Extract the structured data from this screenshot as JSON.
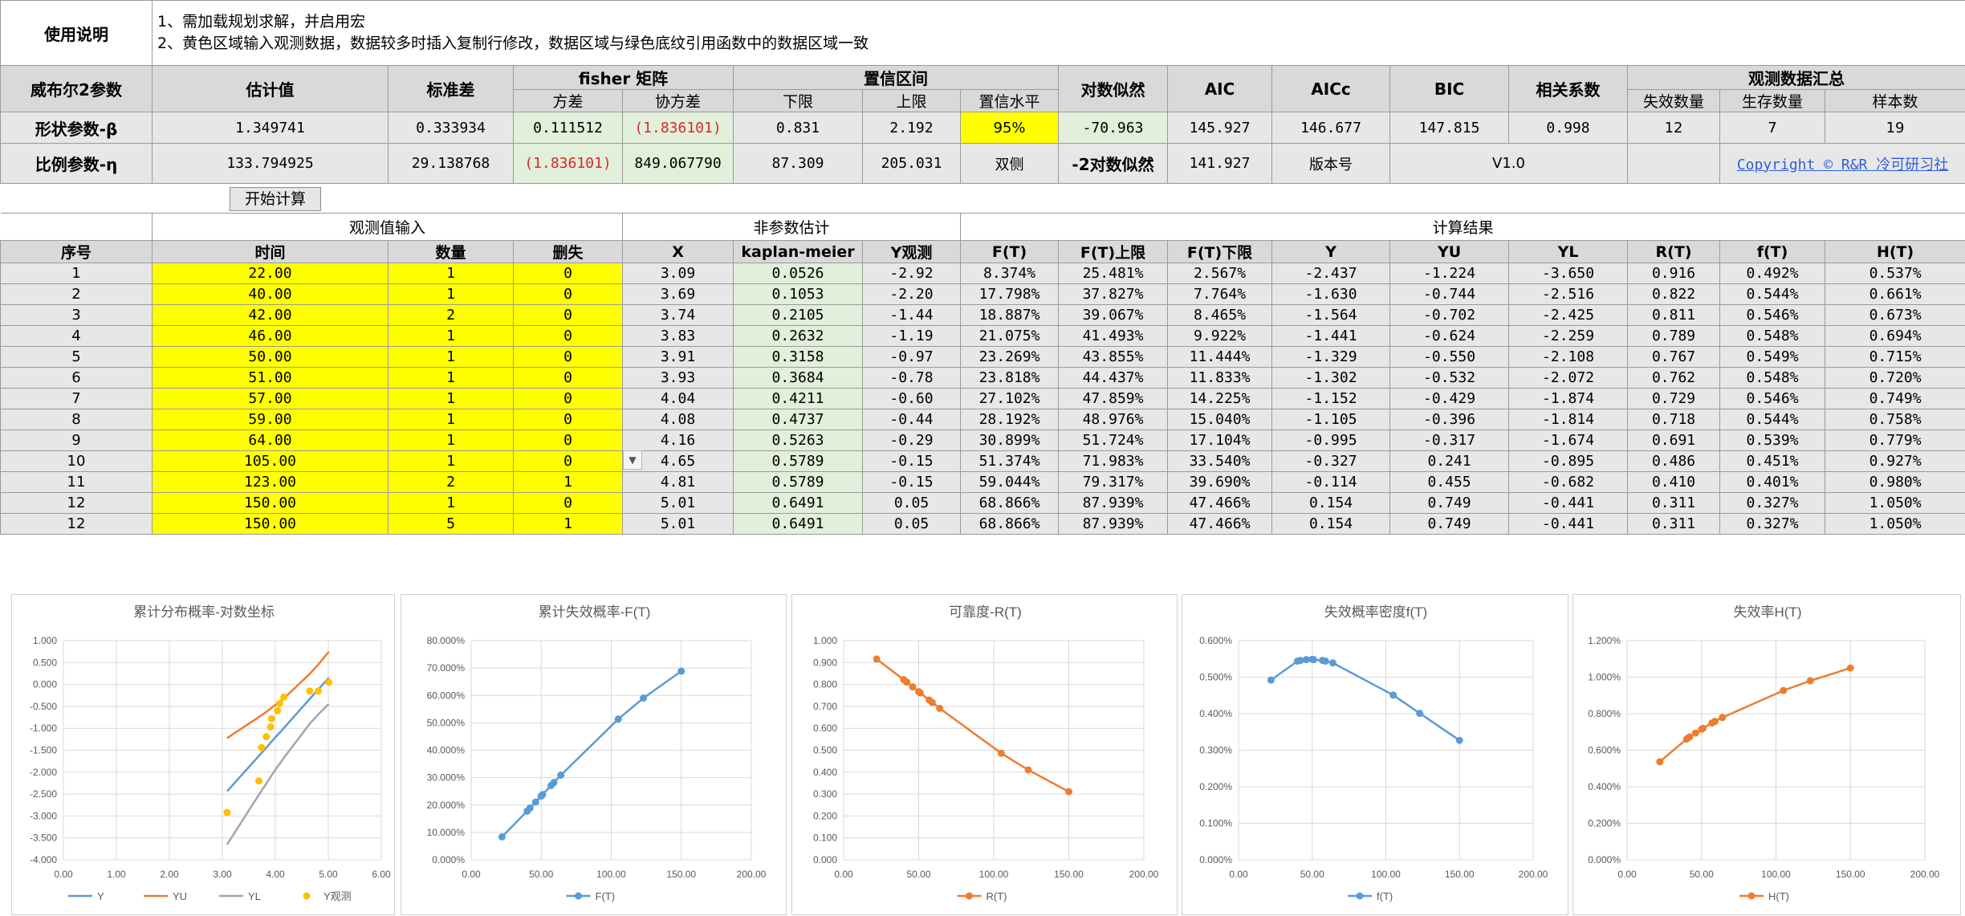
{
  "instructions": {
    "label": "使用说明",
    "line1": "1、需加载规划求解，并启用宏",
    "line2": "2、黄色区域输入观测数据，数据较多时插入复制行修改，数据区域与绿色底纹引用函数中的数据区域一致"
  },
  "params_table": {
    "h_param": "威布尔2参数",
    "h_estimate": "估计值",
    "h_stderr": "标准差",
    "h_fisher": "fisher 矩阵",
    "h_variance": "方差",
    "h_covariance": "协方差",
    "h_ci": "置信区间",
    "h_lower": "下限",
    "h_upper": "上限",
    "h_level": "置信水平",
    "h_loglik": "对数似然",
    "h_aic": "AIC",
    "h_aicc": "AICc",
    "h_bic": "BIC",
    "h_corr": "相关系数",
    "h_summary": "观测数据汇总",
    "h_fail": "失效数量",
    "h_survive": "生存数量",
    "h_samples": "样本数",
    "beta": {
      "label": "形状参数-β",
      "estimate": "1.349741",
      "stderr": "0.333934",
      "variance": "0.111512",
      "covariance": "(1.836101)",
      "lower": "0.831",
      "upper": "2.192",
      "level": "95%",
      "loglik": "-70.963",
      "aic": "145.927",
      "aicc": "146.677",
      "bic": "147.815",
      "corr": "0.998",
      "fail": "12",
      "survive": "7",
      "samples": "19"
    },
    "eta": {
      "label": "比例参数-η",
      "estimate": "133.794925",
      "stderr": "29.138768",
      "variance": "(1.836101)",
      "covariance": "849.067790",
      "lower": "87.309",
      "upper": "205.031",
      "level": "双侧",
      "neg2ll_label": "-2对数似然",
      "neg2ll": "141.927",
      "version_label": "版本号",
      "version": "V1.0",
      "copyright": "Copyright © R&R 冷可研习社"
    }
  },
  "button": {
    "start": "开始计算"
  },
  "data_table": {
    "group_input": "观测值输入",
    "group_nonparam": "非参数估计",
    "group_result": "计算结果",
    "columns": [
      "序号",
      "时间",
      "数量",
      "删失",
      "X",
      "kaplan-meier",
      "Y观测",
      "F(T)",
      "F(T)上限",
      "F(T)下限",
      "Y",
      "YU",
      "YL",
      "R(T)",
      "f(T)",
      "H(T)"
    ],
    "rows": [
      [
        "1",
        "22.00",
        "1",
        "0",
        "3.09",
        "0.0526",
        "-2.92",
        "8.374%",
        "25.481%",
        "2.567%",
        "-2.437",
        "-1.224",
        "-3.650",
        "0.916",
        "0.492%",
        "0.537%"
      ],
      [
        "2",
        "40.00",
        "1",
        "0",
        "3.69",
        "0.1053",
        "-2.20",
        "17.798%",
        "37.827%",
        "7.764%",
        "-1.630",
        "-0.744",
        "-2.516",
        "0.822",
        "0.544%",
        "0.661%"
      ],
      [
        "3",
        "42.00",
        "2",
        "0",
        "3.74",
        "0.2105",
        "-1.44",
        "18.887%",
        "39.067%",
        "8.465%",
        "-1.564",
        "-0.702",
        "-2.425",
        "0.811",
        "0.546%",
        "0.673%"
      ],
      [
        "4",
        "46.00",
        "1",
        "0",
        "3.83",
        "0.2632",
        "-1.19",
        "21.075%",
        "41.493%",
        "9.922%",
        "-1.441",
        "-0.624",
        "-2.259",
        "0.789",
        "0.548%",
        "0.694%"
      ],
      [
        "5",
        "50.00",
        "1",
        "0",
        "3.91",
        "0.3158",
        "-0.97",
        "23.269%",
        "43.855%",
        "11.444%",
        "-1.329",
        "-0.550",
        "-2.108",
        "0.767",
        "0.549%",
        "0.715%"
      ],
      [
        "6",
        "51.00",
        "1",
        "0",
        "3.93",
        "0.3684",
        "-0.78",
        "23.818%",
        "44.437%",
        "11.833%",
        "-1.302",
        "-0.532",
        "-2.072",
        "0.762",
        "0.548%",
        "0.720%"
      ],
      [
        "7",
        "57.00",
        "1",
        "0",
        "4.04",
        "0.4211",
        "-0.60",
        "27.102%",
        "47.859%",
        "14.225%",
        "-1.152",
        "-0.429",
        "-1.874",
        "0.729",
        "0.546%",
        "0.749%"
      ],
      [
        "8",
        "59.00",
        "1",
        "0",
        "4.08",
        "0.4737",
        "-0.44",
        "28.192%",
        "48.976%",
        "15.040%",
        "-1.105",
        "-0.396",
        "-1.814",
        "0.718",
        "0.544%",
        "0.758%"
      ],
      [
        "9",
        "64.00",
        "1",
        "0",
        "4.16",
        "0.5263",
        "-0.29",
        "30.899%",
        "51.724%",
        "17.104%",
        "-0.995",
        "-0.317",
        "-1.674",
        "0.691",
        "0.539%",
        "0.779%"
      ],
      [
        "10",
        "105.00",
        "1",
        "0",
        "4.65",
        "0.5789",
        "-0.15",
        "51.374%",
        "71.983%",
        "33.540%",
        "-0.327",
        "0.241",
        "-0.895",
        "0.486",
        "0.451%",
        "0.927%"
      ],
      [
        "11",
        "123.00",
        "2",
        "1",
        "4.81",
        "0.5789",
        "-0.15",
        "59.044%",
        "79.317%",
        "39.690%",
        "-0.114",
        "0.455",
        "-0.682",
        "0.410",
        "0.401%",
        "0.980%"
      ],
      [
        "12",
        "150.00",
        "1",
        "0",
        "5.01",
        "0.6491",
        "0.05",
        "68.866%",
        "87.939%",
        "47.466%",
        "0.154",
        "0.749",
        "-0.441",
        "0.311",
        "0.327%",
        "1.050%"
      ],
      [
        "12",
        "150.00",
        "5",
        "1",
        "5.01",
        "0.6491",
        "0.05",
        "68.866%",
        "87.939%",
        "47.466%",
        "0.154",
        "0.749",
        "-0.441",
        "0.311",
        "0.327%",
        "1.050%"
      ]
    ]
  },
  "colors": {
    "blue": "#5b9bd5",
    "orange": "#ed7d31",
    "gray": "#a5a5a5",
    "gold": "#ffc000",
    "yellow": "#ffff00",
    "green": "#e2efda",
    "header": "#d9d9d9"
  },
  "chart_data": [
    {
      "type": "line",
      "title": "累计分布概率-对数坐标",
      "xlim": [
        0,
        6
      ],
      "ylim": [
        -4,
        1
      ],
      "xticks": [
        "0.00",
        "1.00",
        "2.00",
        "3.00",
        "4.00",
        "5.00",
        "6.00"
      ],
      "yticks": [
        "-4.000",
        "-3.500",
        "-3.000",
        "-2.500",
        "-2.000",
        "-1.500",
        "-1.000",
        "-0.500",
        "0.000",
        "0.500",
        "1.000"
      ],
      "x": [
        3.09,
        3.69,
        3.74,
        3.83,
        3.91,
        3.93,
        4.04,
        4.08,
        4.16,
        4.65,
        4.81,
        5.01
      ],
      "series": [
        {
          "name": "Y",
          "style": "line",
          "color": "#5b9bd5",
          "values": [
            -2.437,
            -1.63,
            -1.564,
            -1.441,
            -1.329,
            -1.302,
            -1.152,
            -1.105,
            -0.995,
            -0.327,
            -0.114,
            0.154
          ]
        },
        {
          "name": "YU",
          "style": "line",
          "color": "#ed7d31",
          "values": [
            -1.224,
            -0.744,
            -0.702,
            -0.624,
            -0.55,
            -0.532,
            -0.429,
            -0.396,
            -0.317,
            0.241,
            0.455,
            0.749
          ]
        },
        {
          "name": "YL",
          "style": "line",
          "color": "#a5a5a5",
          "values": [
            -3.65,
            -2.516,
            -2.425,
            -2.259,
            -2.108,
            -2.072,
            -1.874,
            -1.814,
            -1.674,
            -0.895,
            -0.682,
            -0.441
          ]
        },
        {
          "name": "Y观测",
          "style": "scatter",
          "color": "#ffc000",
          "values": [
            -2.92,
            -2.2,
            -1.44,
            -1.19,
            -0.97,
            -0.78,
            -0.6,
            -0.44,
            -0.29,
            -0.15,
            -0.15,
            0.05
          ]
        }
      ]
    },
    {
      "type": "line",
      "title": "累计失效概率-F(T)",
      "xlim": [
        0,
        200
      ],
      "ylim": [
        0,
        80
      ],
      "xticks": [
        "0.00",
        "50.00",
        "100.00",
        "150.00",
        "200.00"
      ],
      "yticks": [
        "0.000%",
        "10.000%",
        "20.000%",
        "30.000%",
        "40.000%",
        "50.000%",
        "60.000%",
        "70.000%",
        "80.000%"
      ],
      "x": [
        22,
        40,
        42,
        46,
        50,
        51,
        57,
        59,
        64,
        105,
        123,
        150
      ],
      "series": [
        {
          "name": "F(T)",
          "color": "#5b9bd5",
          "values": [
            8.374,
            17.798,
            18.887,
            21.075,
            23.269,
            23.818,
            27.102,
            28.192,
            30.899,
            51.374,
            59.044,
            68.866
          ]
        }
      ]
    },
    {
      "type": "line",
      "title": "可靠度-R(T)",
      "xlim": [
        0,
        200
      ],
      "ylim": [
        0,
        1
      ],
      "xticks": [
        "0.00",
        "50.00",
        "100.00",
        "150.00",
        "200.00"
      ],
      "yticks": [
        "0.000",
        "0.100",
        "0.200",
        "0.300",
        "0.400",
        "0.500",
        "0.600",
        "0.700",
        "0.800",
        "0.900",
        "1.000"
      ],
      "x": [
        22,
        40,
        42,
        46,
        50,
        51,
        57,
        59,
        64,
        105,
        123,
        150
      ],
      "series": [
        {
          "name": "R(T)",
          "color": "#ed7d31",
          "values": [
            0.916,
            0.822,
            0.811,
            0.789,
            0.767,
            0.762,
            0.729,
            0.718,
            0.691,
            0.486,
            0.41,
            0.311
          ]
        }
      ]
    },
    {
      "type": "line",
      "title": "失效概率密度f(T)",
      "xlim": [
        0,
        200
      ],
      "ylim": [
        0,
        0.6
      ],
      "xticks": [
        "0.00",
        "50.00",
        "100.00",
        "150.00",
        "200.00"
      ],
      "yticks": [
        "0.000%",
        "0.100%",
        "0.200%",
        "0.300%",
        "0.400%",
        "0.500%",
        "0.600%"
      ],
      "x": [
        22,
        40,
        42,
        46,
        50,
        51,
        57,
        59,
        64,
        105,
        123,
        150
      ],
      "series": [
        {
          "name": "f(T)",
          "color": "#5b9bd5",
          "values": [
            0.492,
            0.544,
            0.546,
            0.548,
            0.549,
            0.548,
            0.546,
            0.544,
            0.539,
            0.451,
            0.401,
            0.327
          ]
        }
      ]
    },
    {
      "type": "line",
      "title": "失效率H(T)",
      "xlim": [
        0,
        200
      ],
      "ylim": [
        0,
        1.2
      ],
      "xticks": [
        "0.00",
        "50.00",
        "100.00",
        "150.00",
        "200.00"
      ],
      "yticks": [
        "0.000%",
        "0.200%",
        "0.400%",
        "0.600%",
        "0.800%",
        "1.000%",
        "1.200%"
      ],
      "x": [
        22,
        40,
        42,
        46,
        50,
        51,
        57,
        59,
        64,
        105,
        123,
        150
      ],
      "series": [
        {
          "name": "H(T)",
          "color": "#ed7d31",
          "values": [
            0.537,
            0.661,
            0.673,
            0.694,
            0.715,
            0.72,
            0.749,
            0.758,
            0.779,
            0.927,
            0.98,
            1.05
          ]
        }
      ]
    }
  ]
}
